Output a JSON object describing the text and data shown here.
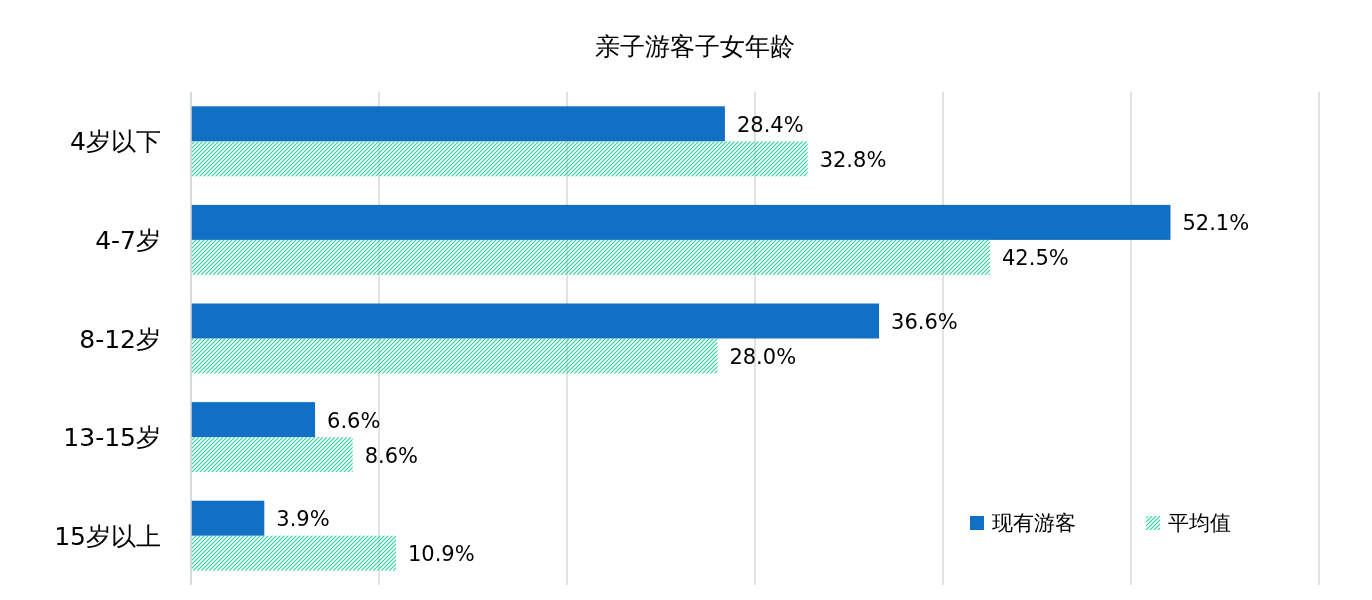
{
  "chart_data": {
    "type": "bar",
    "orientation": "horizontal",
    "title": "亲子游客子女年龄",
    "categories": [
      "4岁以下",
      "4-7岁",
      "8-12岁",
      "13-15岁",
      "15岁以上"
    ],
    "series": [
      {
        "name": "现有游客",
        "color": "#1170c4",
        "values": [
          28.4,
          52.1,
          36.6,
          6.6,
          3.9
        ],
        "value_labels": [
          "28.4%",
          "52.1%",
          "36.6%",
          "6.6%",
          "3.9%"
        ]
      },
      {
        "name": "平均值",
        "color": "#2ed3a0",
        "values": [
          32.8,
          42.5,
          28.0,
          8.6,
          10.9
        ],
        "value_labels": [
          "32.8%",
          "42.5%",
          "28.0%",
          "8.6%",
          "10.9%"
        ]
      }
    ],
    "xlim": [
      0,
      60
    ],
    "xticks": [
      {
        "value": 0,
        "label": null
      },
      {
        "value": 10,
        "label": null
      },
      {
        "value": 20,
        "label": null
      },
      {
        "value": 30,
        "label": null
      },
      {
        "value": 40,
        "label": null
      },
      {
        "value": 50,
        "label": null
      },
      {
        "value": 60,
        "label": null
      }
    ],
    "grid": "x",
    "tick_labels": "y",
    "legend": "bottom right"
  }
}
